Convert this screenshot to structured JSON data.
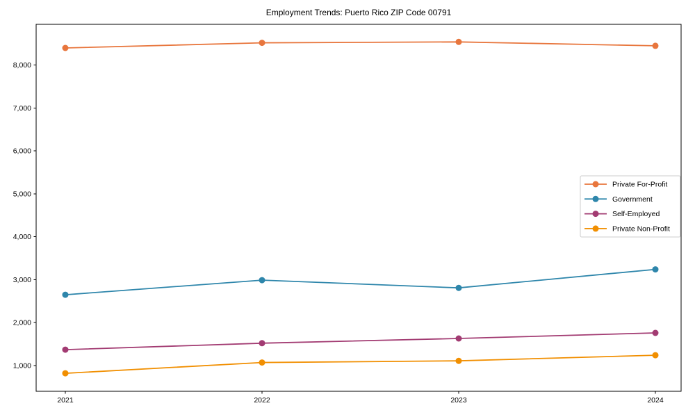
{
  "page": {
    "title": "Employment Trends: Puerto Rico ZIP Code 00791"
  },
  "chart_data": {
    "type": "line",
    "title": "Employment Trends: Puerto Rico ZIP Code 00791",
    "categories": [
      "2021",
      "2022",
      "2023",
      "2024"
    ],
    "series": [
      {
        "name": "Private For-Profit",
        "color": "#E8763D",
        "values": [
          8400,
          8520,
          8540,
          8450
        ]
      },
      {
        "name": "Government",
        "color": "#2E86AB",
        "values": [
          2650,
          2990,
          2810,
          3240
        ]
      },
      {
        "name": "Self-Employed",
        "color": "#A23B72",
        "values": [
          1370,
          1520,
          1630,
          1760
        ]
      },
      {
        "name": "Private Non-Profit",
        "color": "#F18F01",
        "values": [
          820,
          1070,
          1110,
          1240
        ]
      }
    ],
    "xlabel": "",
    "ylabel": "",
    "ylim": [
      400,
      8950
    ],
    "yticks": [
      1000,
      2000,
      3000,
      4000,
      5000,
      6000,
      7000,
      8000
    ],
    "ytick_labels": [
      "1,000",
      "2,000",
      "3,000",
      "4,000",
      "5,000",
      "6,000",
      "7,000",
      "8,000"
    ],
    "grid": false,
    "legend_position": "center right",
    "marker": "circle",
    "axis_color": "#000000",
    "legend_border_color": "#cccccc",
    "legend_background": "#ffffff"
  }
}
